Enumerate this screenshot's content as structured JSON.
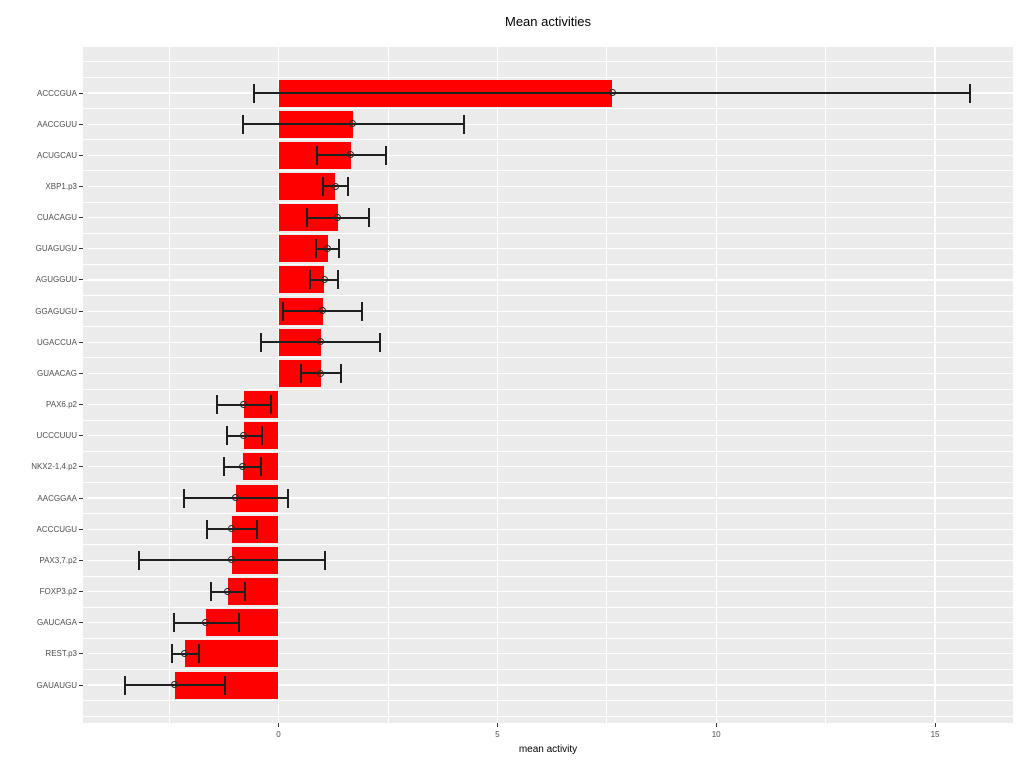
{
  "title": "Mean activities",
  "chart_data": {
    "type": "bar",
    "orientation": "horizontal",
    "title": "Mean activities",
    "xlabel": "mean activity",
    "ylabel": "",
    "xlim": [
      -4.46,
      16.78
    ],
    "xticks": [
      0,
      5,
      10,
      15
    ],
    "xticks_minor": [
      -2.5,
      2.5,
      7.5,
      12.5
    ],
    "grid": true,
    "legend": false,
    "bar_color": "#FF0000",
    "panel_color": "#EBEBEB",
    "grid_color": "#FFFFFF",
    "errorbar_color": "#1F1F1F",
    "tick_label_color": "#4D4D4D",
    "categories": [
      "ACCCGUA",
      "AACCGUU",
      "ACUGCAU",
      "XBP1.p3",
      "CUACAGU",
      "GUAGUGU",
      "AGUGGUU",
      "GGAGUGU",
      "UGACCUA",
      "GUAACAG",
      "PAX6.p2",
      "UCCCUUU",
      "NKX2-1,4.p2",
      "AACGGAA",
      "ACCCUGU",
      "PAX3,7.p2",
      "FOXP3.p2",
      "GAUCAGA",
      "REST.p3",
      "GAUAUGU"
    ],
    "series": [
      {
        "name": "mean activity",
        "values": [
          7.63,
          1.71,
          1.66,
          1.3,
          1.36,
          1.12,
          1.05,
          1.01,
          0.97,
          0.97,
          -0.79,
          -0.78,
          -0.82,
          -0.98,
          -1.07,
          -1.06,
          -1.16,
          -1.65,
          -2.13,
          -2.36
        ],
        "error_low": [
          -0.55,
          -0.82,
          0.87,
          1.02,
          0.66,
          0.86,
          0.73,
          0.1,
          -0.39,
          0.51,
          -1.41,
          -1.18,
          -1.24,
          -2.17,
          -1.63,
          -3.18,
          -1.54,
          -2.39,
          -2.44,
          -3.5
        ],
        "error_high": [
          15.8,
          4.24,
          2.45,
          1.59,
          2.07,
          1.38,
          1.37,
          1.91,
          2.32,
          1.43,
          -0.16,
          -0.38,
          -0.4,
          0.22,
          -0.5,
          1.06,
          -0.76,
          -0.9,
          -1.82,
          -1.22
        ]
      }
    ]
  }
}
